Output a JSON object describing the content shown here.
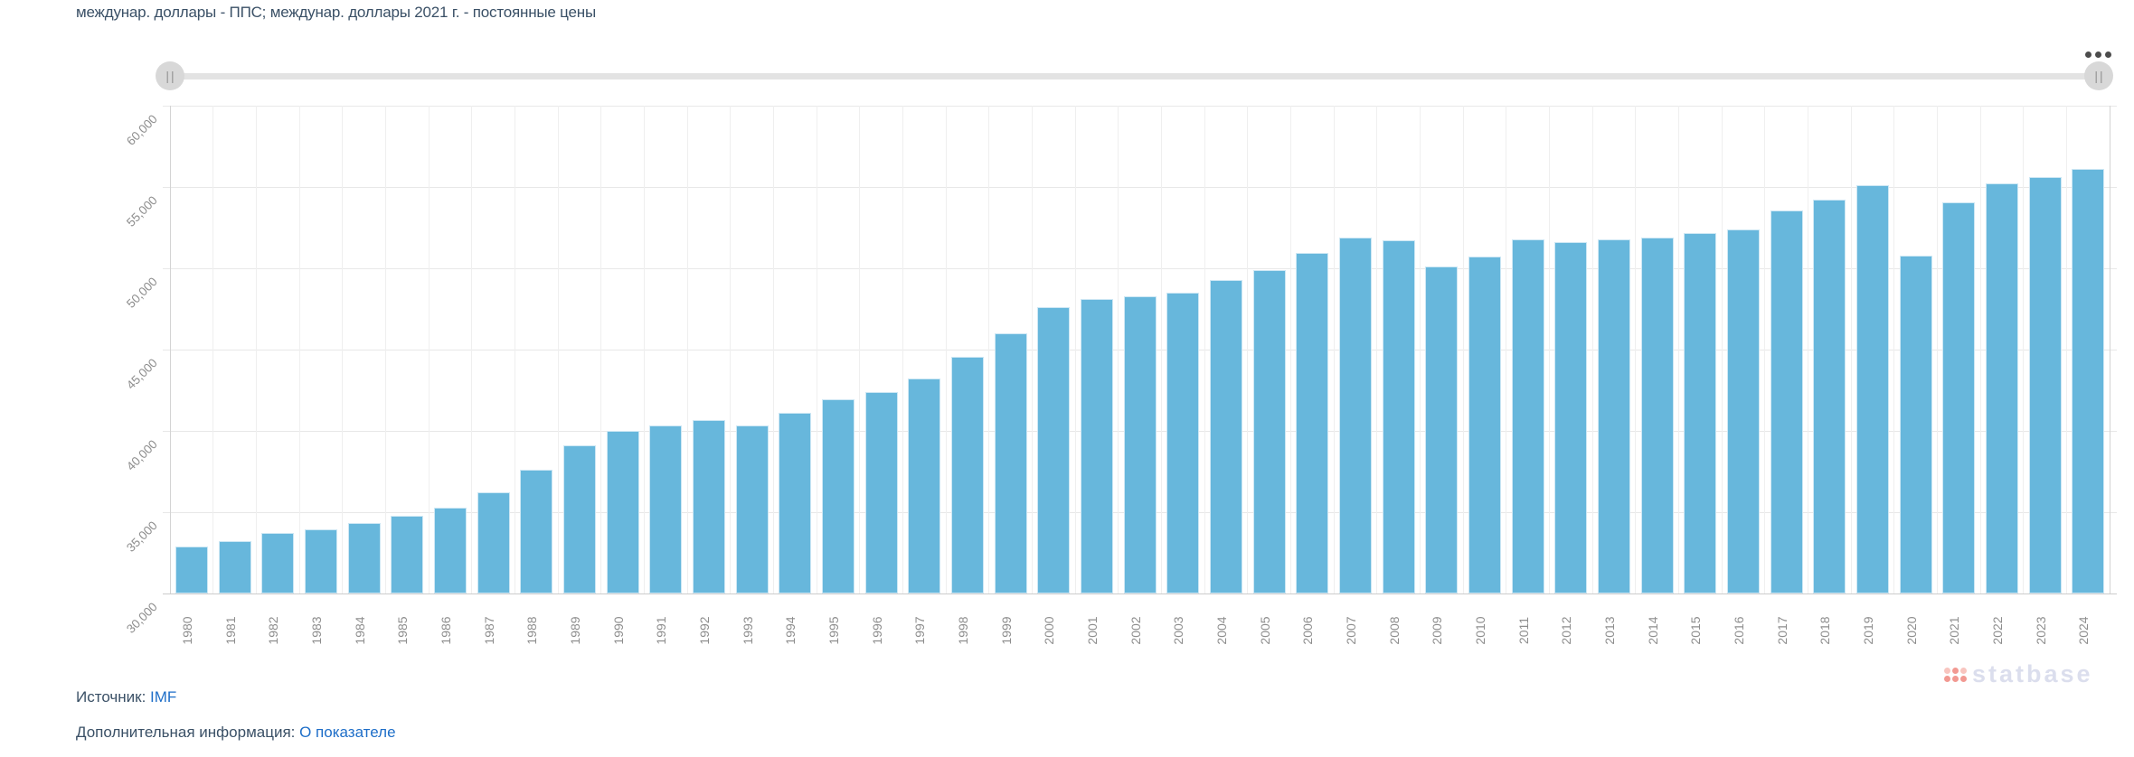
{
  "title": "междунар. доллары - ППС; междунар. доллары 2021 г. - постоянные цены",
  "scrollbar": {
    "grip_glyph": "||"
  },
  "chart_data": {
    "type": "bar",
    "title": "",
    "xlabel": "",
    "ylabel": "",
    "categories": [
      "1980",
      "1981",
      "1982",
      "1983",
      "1984",
      "1985",
      "1986",
      "1987",
      "1988",
      "1989",
      "1990",
      "1991",
      "1992",
      "1993",
      "1994",
      "1995",
      "1996",
      "1997",
      "1998",
      "1999",
      "2000",
      "2001",
      "2002",
      "2003",
      "2004",
      "2005",
      "2006",
      "2007",
      "2008",
      "2009",
      "2010",
      "2011",
      "2012",
      "2013",
      "2014",
      "2015",
      "2016",
      "2017",
      "2018",
      "2019",
      "2020",
      "2021",
      "2022",
      "2023",
      "2024"
    ],
    "values": [
      32900,
      33200,
      33700,
      33950,
      34350,
      34800,
      35300,
      36200,
      37600,
      39100,
      40000,
      40350,
      40650,
      40350,
      41100,
      41950,
      42400,
      43200,
      44550,
      46000,
      47600,
      48100,
      48300,
      48500,
      49300,
      49900,
      50950,
      51900,
      51700,
      50100,
      50700,
      51800,
      51600,
      51800,
      51900,
      52150,
      52400,
      53550,
      54200,
      55100,
      50800,
      54050,
      55250,
      55600,
      56100
    ],
    "ylim": [
      30000,
      60000
    ],
    "yticks": [
      30000,
      35000,
      40000,
      45000,
      50000,
      55000,
      60000
    ],
    "ytick_labels": [
      "30,000",
      "35,000",
      "40,000",
      "45,000",
      "50,000",
      "55,000",
      "60,000"
    ],
    "grid": true,
    "legend": "none",
    "bar_color": "#67b7dc"
  },
  "footer": {
    "source_label": "Источник:",
    "source_link": "IMF",
    "info_label": "Дополнительная информация:",
    "info_link": "О показателе"
  },
  "watermark": {
    "text": "statbase"
  }
}
